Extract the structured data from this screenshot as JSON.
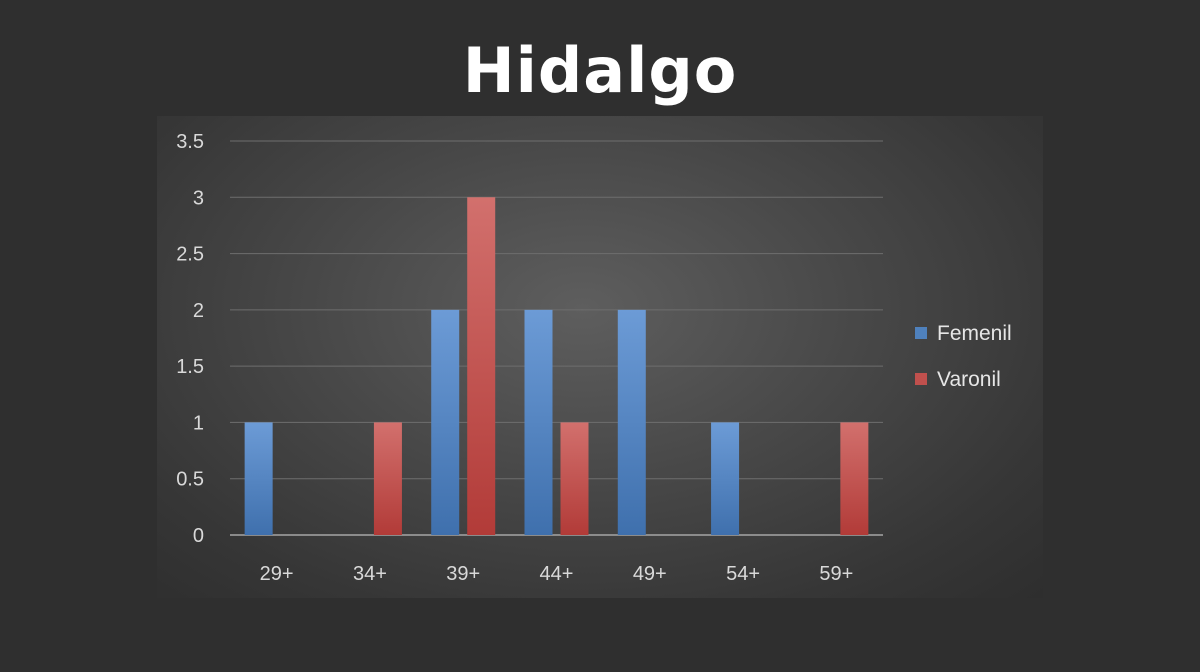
{
  "page": {
    "background": "#2f2f2f"
  },
  "chart_data": {
    "type": "bar",
    "title": "Hidalgo",
    "categories": [
      "29+",
      "34+",
      "39+",
      "44+",
      "49+",
      "54+",
      "59+"
    ],
    "series": [
      {
        "name": "Femenil",
        "color": "#4f81bd",
        "values": [
          1,
          0,
          2,
          2,
          2,
          1,
          0
        ]
      },
      {
        "name": "Varonil",
        "color": "#c0504d",
        "values": [
          0,
          1,
          3,
          1,
          0,
          0,
          1
        ]
      }
    ],
    "yticks": [
      "0",
      "0.5",
      "1",
      "1.5",
      "2",
      "2.5",
      "3",
      "3.5"
    ],
    "ylim": [
      0,
      3.5
    ],
    "xlabel": "",
    "ylabel": "",
    "grid": true,
    "legend_position": "right"
  }
}
